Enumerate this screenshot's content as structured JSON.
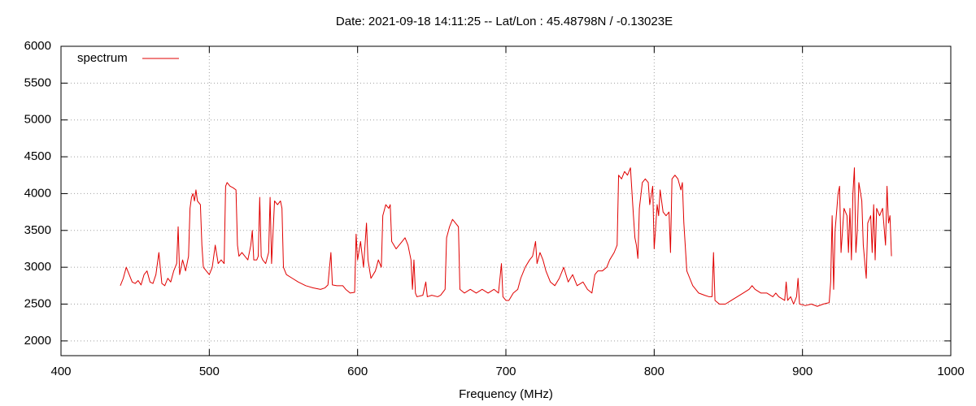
{
  "chart_data": {
    "type": "line",
    "title": "Date: 2021-09-18 14:11:25  --  Lat/Lon : 45.48798N / -0.13023E",
    "x_label": "Frequency (MHz)",
    "xlim": [
      400,
      1000
    ],
    "xticks": [
      400,
      500,
      600,
      700,
      800,
      900,
      1000
    ],
    "ylim": [
      1800,
      6000
    ],
    "yticks": [
      2000,
      2500,
      3000,
      3500,
      4000,
      4500,
      5000,
      5500,
      6000
    ],
    "grid": true,
    "legend": "top-left",
    "x": [
      440,
      442,
      444,
      446,
      448,
      450,
      452,
      454,
      456,
      458,
      460,
      462,
      464,
      466,
      468,
      470,
      472,
      474,
      476,
      478,
      479,
      480,
      482,
      484,
      486,
      487,
      488,
      489,
      490,
      491,
      492,
      494,
      495,
      496,
      498,
      500,
      502,
      504,
      506,
      508,
      510,
      511,
      512,
      514,
      516,
      518,
      519,
      520,
      522,
      524,
      526,
      528,
      529,
      530,
      532,
      533,
      534,
      535,
      536,
      538,
      540,
      541,
      542,
      544,
      546,
      548,
      549,
      550,
      552,
      556,
      560,
      565,
      570,
      575,
      578,
      580,
      582,
      583,
      586,
      590,
      592,
      595,
      598,
      599,
      600,
      602,
      604,
      606,
      607,
      609,
      612,
      614,
      616,
      617,
      619,
      621,
      622,
      623,
      626,
      628,
      630,
      632,
      634,
      636,
      637,
      638,
      639,
      640,
      644,
      646,
      647,
      650,
      654,
      656,
      659,
      660,
      662,
      664,
      666,
      668,
      669,
      672,
      676,
      680,
      684,
      688,
      692,
      695,
      697,
      698,
      700,
      702,
      705,
      708,
      710,
      713,
      716,
      718,
      720,
      721,
      723,
      725,
      727,
      730,
      733,
      736,
      739,
      742,
      745,
      748,
      752,
      755,
      758,
      760,
      762,
      765,
      768,
      770,
      773,
      775,
      776,
      778,
      780,
      782,
      784,
      786,
      787,
      788,
      789,
      790,
      792,
      794,
      796,
      797,
      799,
      800,
      802,
      803,
      804,
      806,
      808,
      810,
      811,
      812,
      814,
      816,
      818,
      819,
      820,
      822,
      824,
      826,
      828,
      830,
      834,
      837,
      839,
      840,
      841,
      844,
      848,
      852,
      856,
      860,
      864,
      866,
      868,
      872,
      876,
      880,
      882,
      884,
      888,
      889,
      890,
      892,
      894,
      896,
      897,
      898,
      902,
      906,
      910,
      914,
      918,
      919,
      920,
      921,
      922,
      924,
      925,
      926,
      928,
      930,
      931,
      932,
      933,
      934,
      935,
      936,
      937,
      938,
      940,
      941,
      943,
      944,
      946,
      947,
      948,
      949,
      950,
      952,
      954,
      956,
      957,
      958,
      959,
      960
    ],
    "series": [
      {
        "name": "spectrum",
        "color": "#e00000",
        "values": [
          2750,
          2850,
          3000,
          2900,
          2800,
          2780,
          2820,
          2760,
          2900,
          2950,
          2800,
          2780,
          2900,
          3200,
          2780,
          2750,
          2850,
          2800,
          2950,
          3050,
          3550,
          2900,
          3100,
          2950,
          3150,
          3800,
          3950,
          4000,
          3900,
          4050,
          3900,
          3850,
          3300,
          3000,
          2950,
          2900,
          3000,
          3300,
          3050,
          3100,
          3050,
          4100,
          4150,
          4100,
          4080,
          4050,
          3300,
          3150,
          3200,
          3150,
          3100,
          3300,
          3500,
          3100,
          3100,
          3150,
          3950,
          3150,
          3100,
          3050,
          3200,
          3950,
          3050,
          3900,
          3850,
          3900,
          3800,
          3000,
          2900,
          2850,
          2800,
          2750,
          2720,
          2700,
          2720,
          2760,
          3200,
          2760,
          2750,
          2750,
          2700,
          2650,
          2660,
          3450,
          3100,
          3350,
          3000,
          3600,
          3100,
          2850,
          2950,
          3100,
          3000,
          3700,
          3850,
          3800,
          3850,
          3350,
          3250,
          3300,
          3350,
          3400,
          3300,
          3100,
          2700,
          3100,
          2650,
          2600,
          2620,
          2800,
          2600,
          2620,
          2600,
          2620,
          2700,
          3400,
          3550,
          3650,
          3600,
          3550,
          2700,
          2650,
          2700,
          2650,
          2700,
          2650,
          2700,
          2650,
          3050,
          2600,
          2550,
          2550,
          2650,
          2700,
          2850,
          3000,
          3100,
          3150,
          3350,
          3050,
          3200,
          3100,
          2950,
          2800,
          2750,
          2850,
          3000,
          2800,
          2900,
          2750,
          2800,
          2700,
          2650,
          2900,
          2950,
          2950,
          3000,
          3100,
          3200,
          3300,
          4250,
          4200,
          4300,
          4250,
          4350,
          3700,
          3400,
          3300,
          3120,
          3800,
          4150,
          4200,
          4150,
          3850,
          4100,
          3250,
          3850,
          3700,
          4050,
          3750,
          3700,
          3750,
          3200,
          4200,
          4250,
          4200,
          4050,
          4150,
          3600,
          2950,
          2850,
          2750,
          2700,
          2650,
          2620,
          2600,
          2600,
          3200,
          2550,
          2500,
          2500,
          2550,
          2600,
          2650,
          2700,
          2750,
          2700,
          2650,
          2650,
          2600,
          2650,
          2600,
          2550,
          2800,
          2550,
          2600,
          2500,
          2600,
          2850,
          2500,
          2480,
          2500,
          2470,
          2500,
          2520,
          2800,
          3700,
          2700,
          3500,
          4000,
          4100,
          3200,
          3800,
          3700,
          3200,
          3800,
          3100,
          4000,
          4350,
          3200,
          3500,
          4150,
          3900,
          3300,
          2850,
          3600,
          3700,
          3200,
          3850,
          3100,
          3800,
          3700,
          3800,
          3300,
          4100,
          3600,
          3700,
          3150
        ]
      }
    ]
  }
}
